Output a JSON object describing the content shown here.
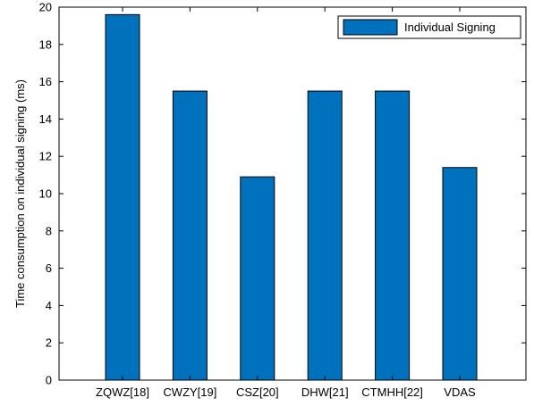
{
  "chart_data": {
    "type": "bar",
    "categories": [
      "ZQWZ[18]",
      "CWZY[19]",
      "CSZ[20]",
      "DHW[21]",
      "CTMHH[22]",
      "VDAS"
    ],
    "series": [
      {
        "name": "Individual Signing",
        "values": [
          19.6,
          15.5,
          10.9,
          15.5,
          15.5,
          11.4
        ],
        "color": "#0072bd"
      }
    ],
    "xlabel": "",
    "ylabel": "Time consumption on individual signing (ms)",
    "ylim": [
      0,
      20
    ],
    "yticks": [
      "0",
      "2",
      "4",
      "6",
      "8",
      "10",
      "12",
      "14",
      "16",
      "18",
      "20"
    ],
    "grid": false,
    "legend_position": "top-right"
  }
}
